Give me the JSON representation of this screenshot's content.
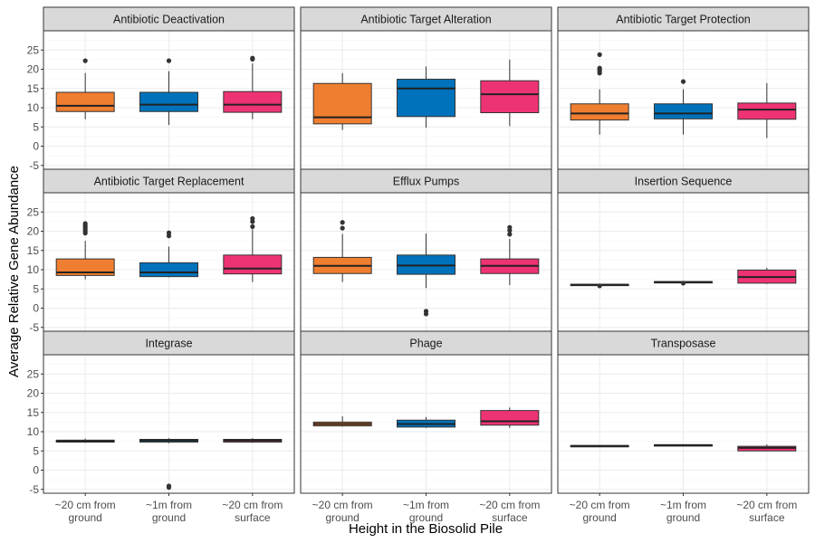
{
  "chart_data": {
    "type": "boxplot",
    "xlabel": "Height in the Biosolid Pile",
    "ylabel": "Average Relative Gene Abundance",
    "ylim": [
      -6,
      30
    ],
    "yticks": [
      -5,
      0,
      5,
      10,
      15,
      20,
      25
    ],
    "facet_layout": {
      "rows": 3,
      "cols": 3
    },
    "grid": true,
    "categories": [
      [
        "~20 cm from",
        "ground"
      ],
      [
        "~1m from",
        "ground"
      ],
      [
        "~20 cm from",
        "surface"
      ]
    ],
    "colors": [
      "#F07E30",
      "#0072BB",
      "#EE3375"
    ],
    "panels": [
      {
        "title": "Antibiotic Deactivation",
        "boxes": [
          {
            "q1": 9,
            "median": 10.5,
            "q3": 14,
            "lo": 7,
            "hi": 19,
            "outliers": [
              22.2
            ]
          },
          {
            "q1": 9,
            "median": 10.8,
            "q3": 14,
            "lo": 5.5,
            "hi": 19.5,
            "outliers": [
              22.2
            ]
          },
          {
            "q1": 8.8,
            "median": 10.8,
            "q3": 14.2,
            "lo": 7,
            "hi": 21.5,
            "outliers": [
              22.6,
              22.9
            ]
          }
        ]
      },
      {
        "title": "Antibiotic Target Alteration",
        "boxes": [
          {
            "q1": 5.8,
            "median": 7.5,
            "q3": 16.3,
            "lo": 4.2,
            "hi": 19,
            "outliers": []
          },
          {
            "q1": 7.7,
            "median": 15,
            "q3": 17.4,
            "lo": 4.8,
            "hi": 20.7,
            "outliers": []
          },
          {
            "q1": 8.7,
            "median": 13.5,
            "q3": 17,
            "lo": 5.2,
            "hi": 22.5,
            "outliers": []
          }
        ]
      },
      {
        "title": "Antibiotic Target Protection",
        "boxes": [
          {
            "q1": 6.8,
            "median": 8.5,
            "q3": 11,
            "lo": 3,
            "hi": 14.8,
            "outliers": [
              19,
              19.5,
              20,
              20.3,
              23.8
            ]
          },
          {
            "q1": 7.1,
            "median": 8.5,
            "q3": 11,
            "lo": 3,
            "hi": 14.8,
            "outliers": [
              16.8
            ]
          },
          {
            "q1": 7,
            "median": 9.5,
            "q3": 11.2,
            "lo": 2.1,
            "hi": 16.4,
            "outliers": []
          }
        ]
      },
      {
        "title": "Antibiotic Target Replacement",
        "boxes": [
          {
            "q1": 8.5,
            "median": 9.3,
            "q3": 12.8,
            "lo": 7.5,
            "hi": 17.5,
            "outliers": [
              19.5,
              20,
              20.5,
              21,
              21.5,
              22
            ]
          },
          {
            "q1": 8.2,
            "median": 9.3,
            "q3": 11.8,
            "lo": 8,
            "hi": 16,
            "outliers": [
              18.8,
              19.6
            ]
          },
          {
            "q1": 8.9,
            "median": 10.3,
            "q3": 13.8,
            "lo": 6.8,
            "hi": 20.5,
            "outliers": [
              21.2,
              22.5,
              23.3
            ]
          }
        ]
      },
      {
        "title": "Efflux Pumps",
        "boxes": [
          {
            "q1": 9,
            "median": 11,
            "q3": 13.2,
            "lo": 6.8,
            "hi": 19.3,
            "outliers": [
              20.8,
              22.3
            ]
          },
          {
            "q1": 8.8,
            "median": 11.1,
            "q3": 13.8,
            "lo": 5.2,
            "hi": 19.4,
            "outliers": [
              -0.8,
              -1.5
            ]
          },
          {
            "q1": 9,
            "median": 11,
            "q3": 12.8,
            "lo": 6,
            "hi": 18,
            "outliers": [
              19.2,
              20.2,
              21
            ]
          }
        ]
      },
      {
        "title": "Insertion Sequence",
        "boxes": [
          {
            "q1": 5.9,
            "median": 6.1,
            "q3": 6.2,
            "lo": 5.8,
            "hi": 6.3,
            "outliers": [
              5.8
            ]
          },
          {
            "q1": 6.7,
            "median": 6.8,
            "q3": 6.9,
            "lo": 6.6,
            "hi": 7,
            "outliers": [
              6.5
            ]
          },
          {
            "q1": 6.5,
            "median": 8.1,
            "q3": 9.9,
            "lo": 6.3,
            "hi": 10.5,
            "outliers": []
          }
        ]
      },
      {
        "title": "Integrase",
        "boxes": [
          {
            "q1": 7.3,
            "median": 7.5,
            "q3": 7.8,
            "lo": 7.1,
            "hi": 8.2,
            "outliers": []
          },
          {
            "q1": 7.3,
            "median": 7.7,
            "q3": 8,
            "lo": 7,
            "hi": 8.3,
            "outliers": [
              -4.1,
              -4.5
            ]
          },
          {
            "q1": 7.3,
            "median": 7.7,
            "q3": 8,
            "lo": 7.1,
            "hi": 8.3,
            "outliers": []
          }
        ]
      },
      {
        "title": "Phage",
        "boxes": [
          {
            "q1": 11.5,
            "median": 12,
            "q3": 12.5,
            "lo": 11.3,
            "hi": 14,
            "outliers": []
          },
          {
            "q1": 11.2,
            "median": 12,
            "q3": 13,
            "lo": 11,
            "hi": 13.8,
            "outliers": []
          },
          {
            "q1": 11.7,
            "median": 12.7,
            "q3": 15.5,
            "lo": 11,
            "hi": 16.3,
            "outliers": []
          }
        ]
      },
      {
        "title": "Transposase",
        "boxes": [
          {
            "q1": 6.2,
            "median": 6.3,
            "q3": 6.4,
            "lo": 6.1,
            "hi": 6.5,
            "outliers": []
          },
          {
            "q1": 6.4,
            "median": 6.5,
            "q3": 6.6,
            "lo": 6.3,
            "hi": 6.7,
            "outliers": []
          },
          {
            "q1": 5,
            "median": 5.8,
            "q3": 6.2,
            "lo": 4.9,
            "hi": 6.7,
            "outliers": []
          }
        ]
      }
    ]
  }
}
